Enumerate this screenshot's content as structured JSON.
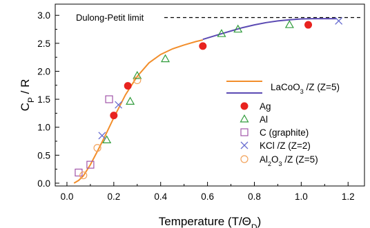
{
  "chart_data": {
    "type": "scatter",
    "title": "",
    "xlabel": {
      "main": "Temperature (T/Θ",
      "sub": "D",
      "tail": ")"
    },
    "ylabel": {
      "main": "C",
      "sub": "P",
      "tail": " / R"
    },
    "xlim": [
      -0.05,
      1.27
    ],
    "ylim": [
      -0.05,
      3.2
    ],
    "xticks": [
      0.0,
      0.2,
      0.4,
      0.6,
      0.8,
      1.0,
      1.2
    ],
    "xtick_labels": [
      "0.0",
      "0.2",
      "0.4",
      "0.6",
      "0.8",
      "1.0",
      "1.2"
    ],
    "yticks": [
      0.0,
      0.5,
      1.0,
      1.5,
      2.0,
      2.5,
      3.0
    ],
    "ytick_labels": [
      "0.0",
      "0.5",
      "1.0",
      "1.5",
      "2.0",
      "2.5",
      "3.0"
    ],
    "grid": false,
    "legend_position": "right",
    "reference_line": {
      "label": "Dulong-Petit limit",
      "y": 2.96
    },
    "lines": [
      {
        "name": "LaCoO3 /Z",
        "legend": {
          "main": "LaCoO",
          "sub": "3",
          "tail": " /Z"
        },
        "color": "#f28e2b",
        "x": [
          0.03,
          0.05,
          0.07,
          0.1,
          0.13,
          0.16,
          0.2,
          0.25,
          0.3,
          0.35,
          0.4,
          0.45,
          0.5,
          0.55,
          0.58
        ],
        "y": [
          0.0,
          0.05,
          0.13,
          0.33,
          0.57,
          0.82,
          1.17,
          1.58,
          1.91,
          2.15,
          2.3,
          2.4,
          2.47,
          2.53,
          2.56
        ]
      },
      {
        "name": "(Z=5)",
        "legend": {
          "main": "(Z=5)",
          "sub": "",
          "tail": ""
        },
        "color": "#5b4ab3",
        "x": [
          0.58,
          0.65,
          0.7,
          0.75,
          0.8,
          0.85,
          0.9,
          0.95,
          1.0,
          1.05,
          1.1,
          1.15
        ],
        "y": [
          2.57,
          2.66,
          2.72,
          2.78,
          2.83,
          2.87,
          2.9,
          2.92,
          2.935,
          2.94,
          2.94,
          2.94
        ]
      }
    ],
    "series": [
      {
        "name": "Ag",
        "legend": {
          "main": "Ag",
          "sub": "",
          "tail": ""
        },
        "marker": "filled-circle",
        "color": "#e8231f",
        "x": [
          0.2,
          0.26,
          0.58,
          1.03
        ],
        "y": [
          1.21,
          1.74,
          2.45,
          2.83
        ]
      },
      {
        "name": "Al",
        "legend": {
          "main": "Al",
          "sub": "",
          "tail": ""
        },
        "marker": "open-triangle",
        "color": "#2f9b3a",
        "x": [
          0.17,
          0.27,
          0.3,
          0.42,
          0.66,
          0.73,
          0.95
        ],
        "y": [
          0.77,
          1.46,
          1.92,
          2.22,
          2.67,
          2.75,
          2.83
        ]
      },
      {
        "name": "C (graphite)",
        "legend": {
          "main": "C (graphite)",
          "sub": "",
          "tail": ""
        },
        "marker": "open-square",
        "color": "#a053a8",
        "x": [
          0.05,
          0.1,
          0.18
        ],
        "y": [
          0.19,
          0.33,
          1.5
        ]
      },
      {
        "name": "KCl /Z (Z=2)",
        "legend": {
          "main": "KCl /Z (Z=2)",
          "sub": "",
          "tail": ""
        },
        "marker": "x",
        "color": "#6a6fd1",
        "x": [
          0.15,
          0.22,
          1.16
        ],
        "y": [
          0.85,
          1.4,
          2.9
        ]
      },
      {
        "name": "Al2O3 /Z (Z=5)",
        "legend": {
          "main": "Al",
          "sub": "2",
          "tail": "O",
          "sub2": "3",
          "tail2": " /Z (Z=5)"
        },
        "marker": "open-circle",
        "color": "#f2a25a",
        "x": [
          0.07,
          0.13,
          0.3
        ],
        "y": [
          0.14,
          0.63,
          1.84
        ]
      }
    ]
  }
}
